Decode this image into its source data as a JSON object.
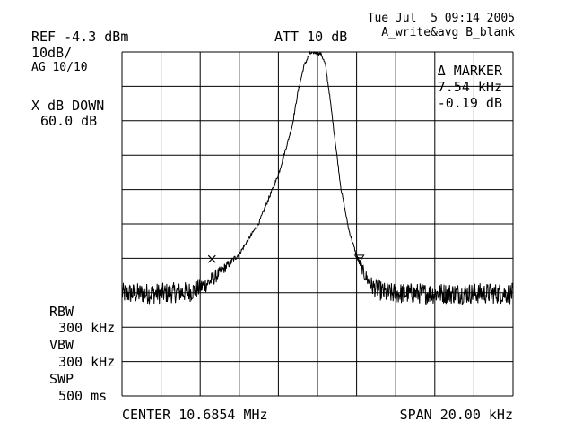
{
  "header": {
    "timestamp": "Tue Jul  5 09:14 2005",
    "trace_mode": "A_write&avg B_blank",
    "ref_level": "REF -4.3 dBm",
    "attenuation": "ATT 10 dB",
    "scale": "10dB/",
    "averaging": "AG 10/10"
  },
  "left_panel": {
    "x_db_down_label": "X dB DOWN",
    "x_db_down_value": "60.0 dB",
    "rbw_label": "RBW",
    "rbw_value": "300 kHz",
    "vbw_label": "VBW",
    "vbw_value": "300 kHz",
    "swp_label": "SWP",
    "swp_value": "500 ms"
  },
  "marker_panel": {
    "title": "Δ MARKER",
    "delta_freq": "7.54 kHz",
    "delta_amp": "-0.19 dB"
  },
  "footer": {
    "center": "CENTER 10.6854 MHz",
    "span": "SPAN 20.00 kHz"
  },
  "chart_data": {
    "type": "line",
    "center_mhz": 10.6854,
    "span_khz": 20.0,
    "ref_dbm": -4.3,
    "db_per_div": 10,
    "divisions_x": 10,
    "divisions_y": 10,
    "grid": true,
    "noise_floor_dbm": -74.5,
    "peak": {
      "offset_khz": -0.1,
      "dbm": -4.4
    },
    "trace": [
      {
        "offset_khz": -10.0,
        "dbm": -74.5
      },
      {
        "offset_khz": -8.0,
        "dbm": -74.5
      },
      {
        "offset_khz": -6.5,
        "dbm": -74.0
      },
      {
        "offset_khz": -6.0,
        "dbm": -72.8
      },
      {
        "offset_khz": -5.5,
        "dbm": -71.0
      },
      {
        "offset_khz": -5.0,
        "dbm": -68.5
      },
      {
        "offset_khz": -4.0,
        "dbm": -63.0
      },
      {
        "offset_khz": -3.0,
        "dbm": -54.0
      },
      {
        "offset_khz": -2.0,
        "dbm": -40.0
      },
      {
        "offset_khz": -1.3,
        "dbm": -26.0
      },
      {
        "offset_khz": -1.0,
        "dbm": -16.0
      },
      {
        "offset_khz": -0.7,
        "dbm": -8.5
      },
      {
        "offset_khz": -0.4,
        "dbm": -4.8
      },
      {
        "offset_khz": -0.1,
        "dbm": -4.4
      },
      {
        "offset_khz": 0.2,
        "dbm": -5.0
      },
      {
        "offset_khz": 0.4,
        "dbm": -8.0
      },
      {
        "offset_khz": 0.6,
        "dbm": -16.0
      },
      {
        "offset_khz": 0.9,
        "dbm": -30.0
      },
      {
        "offset_khz": 1.2,
        "dbm": -44.0
      },
      {
        "offset_khz": 1.6,
        "dbm": -56.0
      },
      {
        "offset_khz": 2.0,
        "dbm": -63.5
      },
      {
        "offset_khz": 2.4,
        "dbm": -69.0
      },
      {
        "offset_khz": 2.8,
        "dbm": -72.5
      },
      {
        "offset_khz": 3.5,
        "dbm": -74.5
      },
      {
        "offset_khz": 10.0,
        "dbm": -74.5
      }
    ],
    "markers": [
      {
        "type": "reference",
        "offset_khz": -5.4,
        "dbm": -64.5
      },
      {
        "type": "delta",
        "offset_khz": 2.14,
        "dbm": -64.7
      }
    ]
  }
}
